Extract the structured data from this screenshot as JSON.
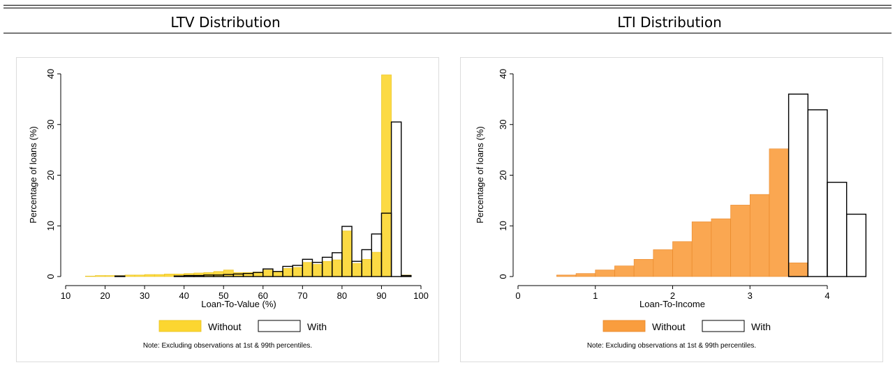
{
  "panels": [
    {
      "title": "LTV Distribution"
    },
    {
      "title": "LTI Distribution"
    }
  ],
  "colors": {
    "ltv_without": "#fcd630",
    "ltv_without_edge": "#e9c21c",
    "lti_without": "#f99d3e",
    "lti_without_edge": "#e88728",
    "with_fill": "#ffffff",
    "with_edge": "#000000",
    "axis": "#000000"
  },
  "chart_data": [
    {
      "type": "bar",
      "title": "LTV Distribution",
      "xlabel": "Loan-To-Value (%)",
      "ylabel": "Percentage of loans (%)",
      "xlim": [
        10,
        100
      ],
      "ylim": [
        0,
        40
      ],
      "xticks": [
        10,
        20,
        30,
        40,
        50,
        60,
        70,
        80,
        90,
        100
      ],
      "yticks": [
        0,
        10,
        20,
        30,
        40
      ],
      "bin_width": 2.5,
      "series": [
        {
          "name": "Without",
          "style": "filled",
          "bins": [
            {
              "x": 15,
              "y": 0.1
            },
            {
              "x": 17.5,
              "y": 0.2
            },
            {
              "x": 20,
              "y": 0.2
            },
            {
              "x": 22.5,
              "y": 0.2
            },
            {
              "x": 25,
              "y": 0.3
            },
            {
              "x": 27.5,
              "y": 0.3
            },
            {
              "x": 30,
              "y": 0.4
            },
            {
              "x": 32.5,
              "y": 0.4
            },
            {
              "x": 35,
              "y": 0.5
            },
            {
              "x": 37.5,
              "y": 0.5
            },
            {
              "x": 40,
              "y": 0.6
            },
            {
              "x": 42.5,
              "y": 0.7
            },
            {
              "x": 45,
              "y": 0.8
            },
            {
              "x": 47.5,
              "y": 1.0
            },
            {
              "x": 50,
              "y": 1.3
            },
            {
              "x": 52.5,
              "y": 0.8
            },
            {
              "x": 55,
              "y": 0.8
            },
            {
              "x": 57.5,
              "y": 0.9
            },
            {
              "x": 60,
              "y": 1.3
            },
            {
              "x": 62.5,
              "y": 1.0
            },
            {
              "x": 65,
              "y": 1.6
            },
            {
              "x": 67.5,
              "y": 1.8
            },
            {
              "x": 70,
              "y": 2.8
            },
            {
              "x": 72.5,
              "y": 2.4
            },
            {
              "x": 75,
              "y": 3.0
            },
            {
              "x": 77.5,
              "y": 3.3
            },
            {
              "x": 80,
              "y": 9.0
            },
            {
              "x": 82.5,
              "y": 2.6
            },
            {
              "x": 85,
              "y": 3.4
            },
            {
              "x": 87.5,
              "y": 4.8
            },
            {
              "x": 90,
              "y": 39.8
            },
            {
              "x": 95,
              "y": 0.3
            }
          ]
        },
        {
          "name": "With",
          "style": "outline",
          "bins": [
            {
              "x": 22.5,
              "y": 0.1
            },
            {
              "x": 37.5,
              "y": 0.1
            },
            {
              "x": 40,
              "y": 0.2
            },
            {
              "x": 42.5,
              "y": 0.2
            },
            {
              "x": 45,
              "y": 0.3
            },
            {
              "x": 47.5,
              "y": 0.3
            },
            {
              "x": 50,
              "y": 0.4
            },
            {
              "x": 52.5,
              "y": 0.5
            },
            {
              "x": 55,
              "y": 0.6
            },
            {
              "x": 57.5,
              "y": 0.8
            },
            {
              "x": 60,
              "y": 1.5
            },
            {
              "x": 62.5,
              "y": 1.0
            },
            {
              "x": 65,
              "y": 2.0
            },
            {
              "x": 67.5,
              "y": 2.2
            },
            {
              "x": 70,
              "y": 3.4
            },
            {
              "x": 72.5,
              "y": 2.8
            },
            {
              "x": 75,
              "y": 3.8
            },
            {
              "x": 77.5,
              "y": 4.7
            },
            {
              "x": 80,
              "y": 9.9
            },
            {
              "x": 82.5,
              "y": 3.0
            },
            {
              "x": 85,
              "y": 5.3
            },
            {
              "x": 87.5,
              "y": 8.4
            },
            {
              "x": 90,
              "y": 12.5
            },
            {
              "x": 92.5,
              "y": 30.5
            },
            {
              "x": 95,
              "y": 0.2
            }
          ]
        }
      ],
      "legend": {
        "position": "bottom",
        "entries": [
          "Without",
          "With"
        ]
      },
      "note": "Note: Excluding observations at 1st & 99th percentiles.",
      "grid": false
    },
    {
      "type": "bar",
      "title": "LTI Distribution",
      "xlabel": "Loan-To-Income",
      "ylabel": "Percentage of loans (%)",
      "xlim": [
        0,
        4.5
      ],
      "ylim": [
        0,
        40
      ],
      "xticks": [
        0,
        1,
        2,
        3,
        4
      ],
      "yticks": [
        0,
        10,
        20,
        30,
        40
      ],
      "bin_width": 0.25,
      "series": [
        {
          "name": "Without",
          "style": "filled",
          "bins": [
            {
              "x": 0.5,
              "y": 0.3
            },
            {
              "x": 0.75,
              "y": 0.6
            },
            {
              "x": 1.0,
              "y": 1.3
            },
            {
              "x": 1.25,
              "y": 2.1
            },
            {
              "x": 1.5,
              "y": 3.4
            },
            {
              "x": 1.75,
              "y": 5.3
            },
            {
              "x": 2.0,
              "y": 6.9
            },
            {
              "x": 2.25,
              "y": 10.8
            },
            {
              "x": 2.5,
              "y": 11.4
            },
            {
              "x": 2.75,
              "y": 14.1
            },
            {
              "x": 3.0,
              "y": 16.2
            },
            {
              "x": 3.25,
              "y": 25.2
            },
            {
              "x": 3.5,
              "y": 2.7
            }
          ]
        },
        {
          "name": "With",
          "style": "outline",
          "bins": [
            {
              "x": 3.5,
              "y": 36.0
            },
            {
              "x": 3.75,
              "y": 32.9
            },
            {
              "x": 4.0,
              "y": 18.6
            },
            {
              "x": 4.25,
              "y": 12.3
            }
          ]
        }
      ],
      "legend": {
        "position": "bottom",
        "entries": [
          "Without",
          "With"
        ]
      },
      "note": "Note: Excluding observations at 1st & 99th percentiles.",
      "grid": false
    }
  ]
}
